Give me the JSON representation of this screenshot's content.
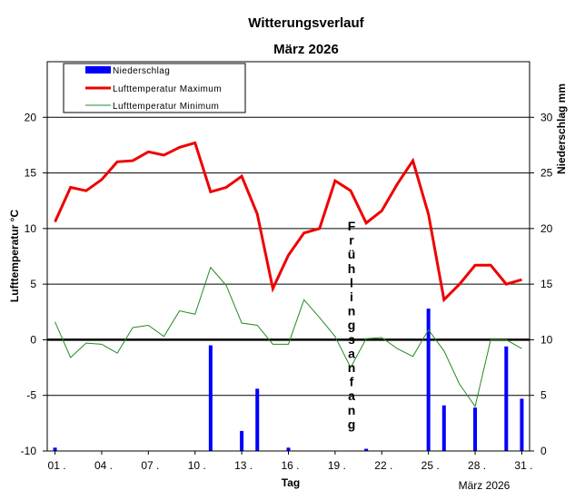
{
  "chart_data": {
    "type": "bar+line",
    "title": "Witterungsverlauf",
    "subtitle": "März 2026",
    "xlabel": "Tag",
    "ylabel_left": "Lufttemperatur °C",
    "ylabel_right": "Niederschlag  mm",
    "footer_label": "März 2026",
    "annotation": "Frühlingsanfang",
    "x_tick_labels": [
      "01 .",
      "04 .",
      "07 .",
      "10 .",
      "13 .",
      "16 .",
      "19 .",
      "22 .",
      "25 .",
      "28 .",
      "31 ."
    ],
    "x_tick_days": [
      1,
      4,
      7,
      10,
      13,
      16,
      19,
      22,
      25,
      28,
      31
    ],
    "days": [
      1,
      2,
      3,
      4,
      5,
      6,
      7,
      8,
      9,
      10,
      11,
      12,
      13,
      14,
      15,
      16,
      17,
      18,
      19,
      20,
      21,
      22,
      23,
      24,
      25,
      26,
      27,
      28,
      29,
      30,
      31
    ],
    "ylim_left": [
      -10,
      25
    ],
    "yticks_left": [
      -10,
      -5,
      0,
      5,
      10,
      15,
      20
    ],
    "ylim_right": [
      0,
      35
    ],
    "yticks_right": [
      0,
      5,
      10,
      15,
      20,
      25,
      30
    ],
    "grid": "horizontal",
    "legend_position": "top-left",
    "series": [
      {
        "name": "Niederschlag",
        "type": "bar",
        "axis": "right",
        "color": "#0000ff",
        "values": [
          0.3,
          0,
          0,
          0,
          0,
          0,
          0,
          0,
          0,
          0,
          9.5,
          0,
          1.8,
          5.6,
          0,
          0.3,
          0,
          0,
          0,
          0,
          0.2,
          0,
          0,
          0,
          12.8,
          4.1,
          0,
          3.9,
          0,
          9.4,
          4.7
        ]
      },
      {
        "name": "Lufttemperatur Maximum",
        "type": "line",
        "axis": "left",
        "color": "#ee0000",
        "values": [
          10.6,
          13.7,
          13.4,
          14.4,
          16.0,
          16.1,
          16.9,
          16.6,
          17.3,
          17.7,
          13.3,
          13.7,
          14.7,
          11.3,
          4.6,
          7.6,
          9.6,
          10.0,
          14.3,
          13.4,
          10.5,
          11.6,
          14.0,
          16.1,
          11.3,
          3.6,
          5.0,
          6.7,
          6.7,
          5.0,
          5.4
        ]
      },
      {
        "name": "Lufttemperatur Minimum",
        "type": "line",
        "axis": "left",
        "color": "#228b22",
        "values": [
          1.6,
          -1.6,
          -0.3,
          -0.4,
          -1.2,
          1.1,
          1.3,
          0.3,
          2.6,
          2.3,
          6.5,
          4.9,
          1.5,
          1.3,
          -0.4,
          -0.4,
          3.6,
          2.0,
          0.3,
          -2.5,
          0.1,
          0.2,
          -0.8,
          -1.5,
          0.9,
          -1.0,
          -4.0,
          -6.0,
          0.0,
          0.0,
          -0.8
        ]
      }
    ]
  }
}
